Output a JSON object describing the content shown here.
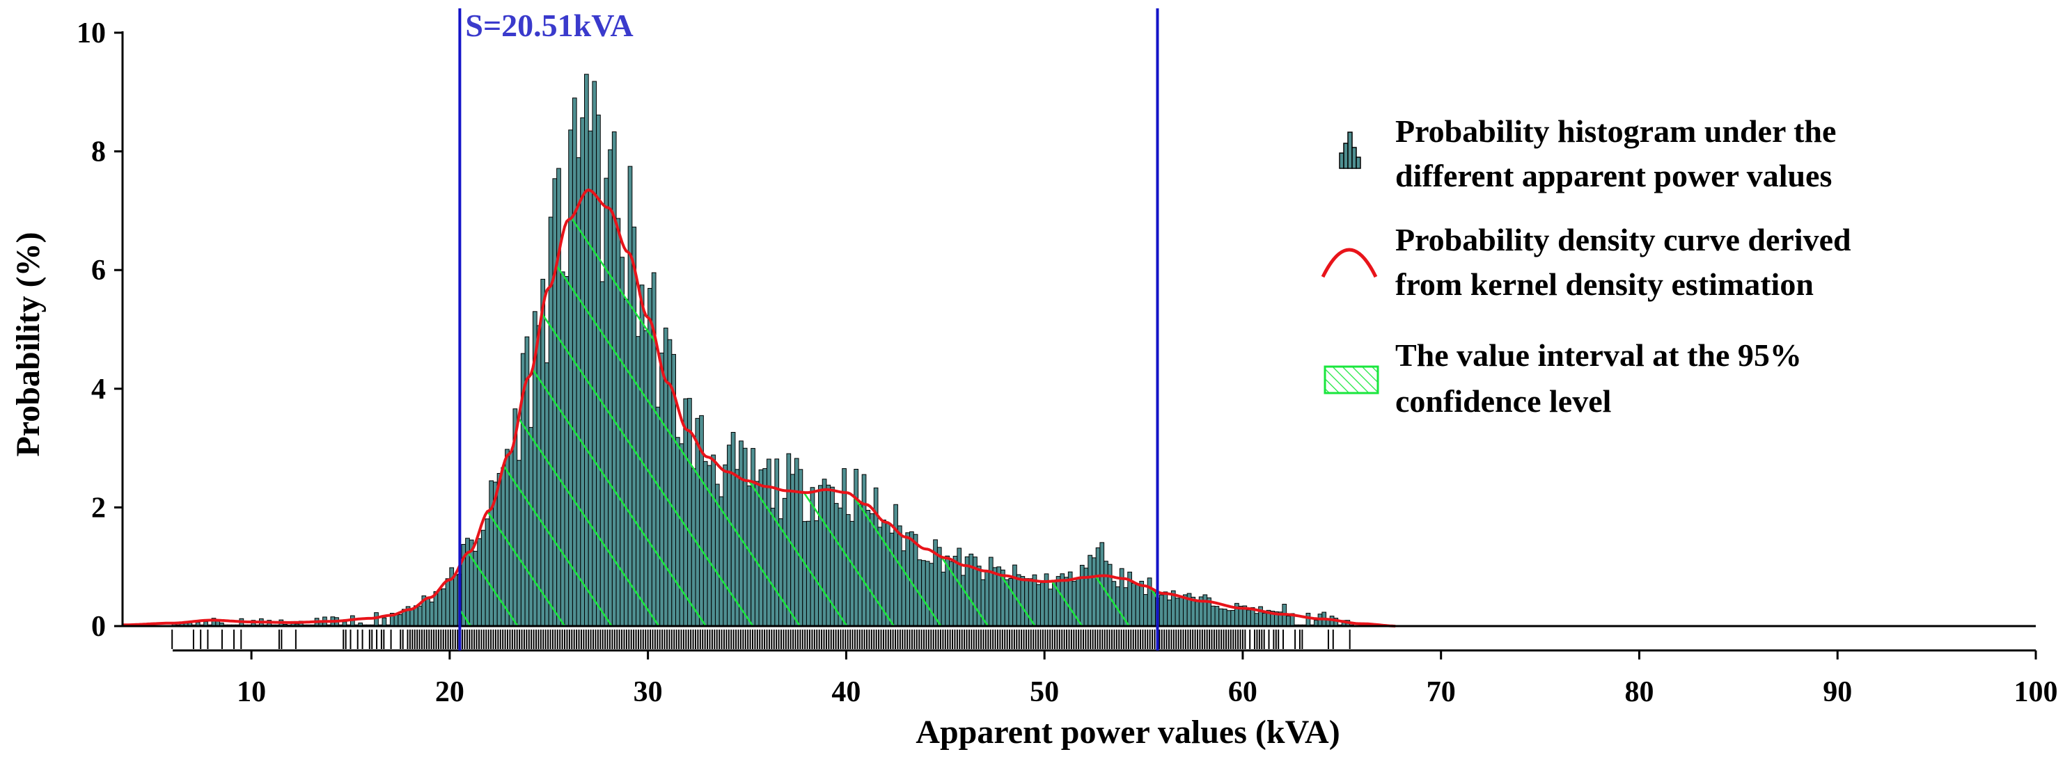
{
  "chart_data": {
    "type": "bar",
    "title": "",
    "xlabel": "Apparent power values (kVA)",
    "ylabel": "Probability  (%)",
    "xlim": [
      3.5,
      100
    ],
    "ylim": [
      0,
      10
    ],
    "x_ticks": [
      10,
      20,
      30,
      40,
      50,
      60,
      70,
      80,
      90,
      100
    ],
    "y_ticks": [
      0,
      2,
      4,
      6,
      8,
      10
    ],
    "x_tick_labels": [
      "10",
      "20",
      "30",
      "40",
      "50",
      "60",
      "70",
      "80",
      "90",
      "100"
    ],
    "y_tick_labels": [
      "0",
      "2",
      "4",
      "6",
      "8",
      "10"
    ],
    "histogram": {
      "name": "Probability histogram under the different apparent power values",
      "bin_width": 0.2,
      "range": [
        6,
        65.6
      ],
      "color": "#4f8f91",
      "edge_color": "#000000"
    },
    "density_curve": {
      "name": "Probability density curve derived from kernel density estimation",
      "color": "#e8141a",
      "x": [
        3.5,
        6,
        8,
        10,
        12,
        14,
        16,
        17,
        18,
        19,
        20,
        21,
        22,
        23,
        24,
        25,
        26,
        27,
        28,
        29,
        30,
        31,
        32,
        33,
        34,
        35,
        36,
        37,
        38,
        39,
        40,
        41,
        42,
        43,
        44,
        45,
        46,
        47,
        48,
        49,
        50,
        51,
        52,
        53,
        54,
        55,
        56,
        58,
        60,
        62,
        64,
        66,
        67.8
      ],
      "y": [
        0.02,
        0.05,
        0.1,
        0.07,
        0.06,
        0.08,
        0.13,
        0.18,
        0.28,
        0.48,
        0.78,
        1.25,
        1.95,
        2.9,
        4.2,
        5.7,
        6.85,
        7.35,
        7.05,
        6.3,
        5.2,
        4.1,
        3.3,
        2.85,
        2.6,
        2.45,
        2.35,
        2.28,
        2.25,
        2.3,
        2.25,
        2.05,
        1.75,
        1.5,
        1.3,
        1.15,
        1.02,
        0.93,
        0.85,
        0.78,
        0.75,
        0.77,
        0.82,
        0.85,
        0.8,
        0.68,
        0.55,
        0.42,
        0.3,
        0.2,
        0.12,
        0.04,
        0.0
      ]
    },
    "confidence_interval": {
      "name": "The value interval at the 95% confidence level",
      "lower": 20.51,
      "upper": 55.7,
      "hatch_color": "#19e63c"
    },
    "vertical_lines": [
      {
        "x": 20.51,
        "label": "S=20.51kVA",
        "color": "#1414c8"
      },
      {
        "x": 55.7,
        "label": "",
        "color": "#1414c8"
      }
    ],
    "legend": {
      "placement": "top-right",
      "items": [
        {
          "icon": "histogram-icon",
          "lines": [
            "Probability histogram under the",
            "different  apparent power values"
          ]
        },
        {
          "icon": "curve-icon",
          "lines": [
            "Probability density curve derived",
            "from kernel density estimation"
          ]
        },
        {
          "icon": "hatch-icon",
          "lines": [
            "The value interval at the 95%",
            "confidence level"
          ]
        }
      ]
    }
  }
}
